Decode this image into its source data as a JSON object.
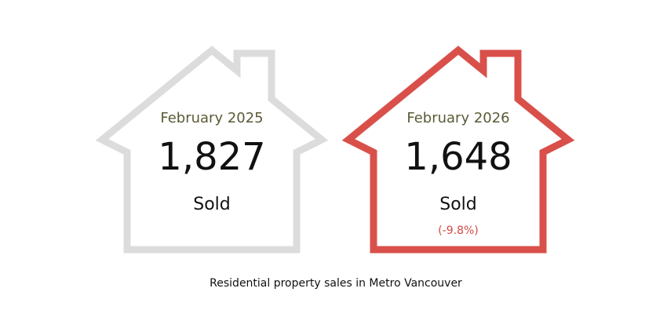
{
  "cards": [
    {
      "period": "February 2025",
      "value": "1,827",
      "unit": "Sold"
    },
    {
      "period": "February 2026",
      "value": "1,648",
      "unit": "Sold",
      "change": "(-9.8%)"
    }
  ],
  "caption": "Residential property sales in Metro Vancouver"
}
